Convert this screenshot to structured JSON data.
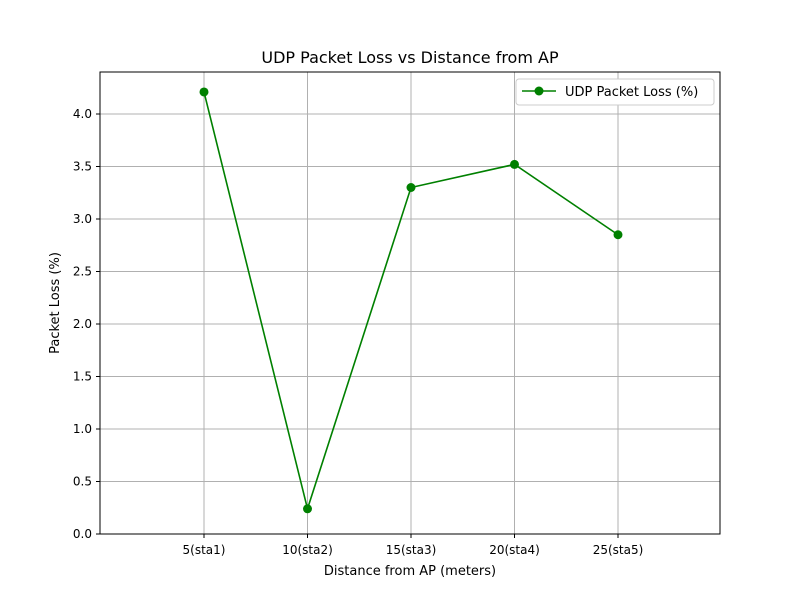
{
  "chart_data": {
    "type": "line",
    "title": "UDP Packet Loss vs Distance from AP",
    "xlabel": "Distance from AP (meters)",
    "ylabel": "Packet Loss (%)",
    "categories": [
      "5(sta1)",
      "10(sta2)",
      "15(sta3)",
      "20(sta4)",
      "25(sta5)"
    ],
    "series": [
      {
        "name": "UDP Packet Loss (%)",
        "values": [
          4.21,
          0.24,
          3.3,
          3.52,
          2.85
        ],
        "color": "#008000",
        "marker": "circle"
      }
    ],
    "ylim": [
      0,
      4.4
    ],
    "yticks": [
      "0.0",
      "0.5",
      "1.0",
      "1.5",
      "2.0",
      "2.5",
      "3.0",
      "3.5",
      "4.0"
    ],
    "grid": true,
    "legend_position": "top-right"
  }
}
